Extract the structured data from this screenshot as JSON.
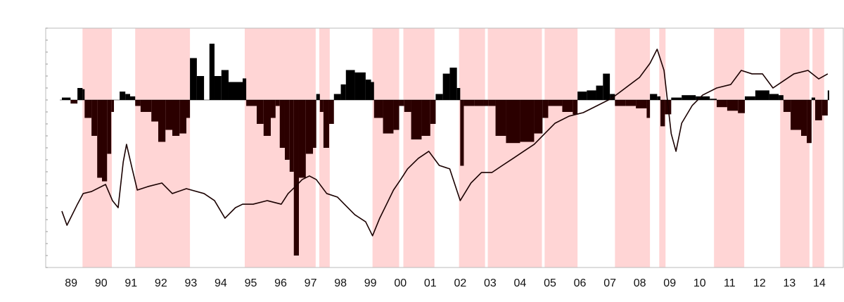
{
  "chart_data": {
    "type": "line",
    "xlim": [
      1988.15,
      2014.8
    ],
    "ylim": [
      -14,
      6
    ],
    "yticks": [
      -14,
      -13,
      -12,
      -11,
      -10,
      -9,
      -8,
      -7,
      -6,
      -5,
      -4,
      -3,
      -2,
      -1,
      0,
      1,
      2,
      3,
      4,
      5,
      6
    ],
    "xticks": [
      {
        "value": 1989,
        "label": "89"
      },
      {
        "value": 1990,
        "label": "90"
      },
      {
        "value": 1991,
        "label": "91"
      },
      {
        "value": 1992,
        "label": "92"
      },
      {
        "value": 1993,
        "label": "93"
      },
      {
        "value": 1994,
        "label": "94"
      },
      {
        "value": 1995,
        "label": "95"
      },
      {
        "value": 1996,
        "label": "96"
      },
      {
        "value": 1997,
        "label": "97"
      },
      {
        "value": 1998,
        "label": "98"
      },
      {
        "value": 1999,
        "label": "99"
      },
      {
        "value": 2000,
        "label": "00"
      },
      {
        "value": 2001,
        "label": "01"
      },
      {
        "value": 2002,
        "label": "02"
      },
      {
        "value": 2003,
        "label": "03"
      },
      {
        "value": 2004,
        "label": "04"
      },
      {
        "value": 2005,
        "label": "05"
      },
      {
        "value": 2006,
        "label": "06"
      },
      {
        "value": 2007,
        "label": "07"
      },
      {
        "value": 2008,
        "label": "08"
      },
      {
        "value": 2009,
        "label": "09"
      },
      {
        "value": 2010,
        "label": "10"
      },
      {
        "value": 2011,
        "label": "11"
      },
      {
        "value": 2012,
        "label": "12"
      },
      {
        "value": 2013,
        "label": "13"
      },
      {
        "value": 2014,
        "label": "14"
      }
    ],
    "shade_color": "#ffd5d5",
    "shaded_periods": [
      [
        1989.38,
        1990.36
      ],
      [
        1991.14,
        1992.97
      ],
      [
        1994.8,
        1997.17
      ],
      [
        1997.29,
        1997.64
      ],
      [
        1999.07,
        1999.96
      ],
      [
        2000.1,
        2001.14
      ],
      [
        2001.96,
        2002.83
      ],
      [
        2002.92,
        2004.73
      ],
      [
        2004.82,
        2005.92
      ],
      [
        2007.17,
        2008.34
      ],
      [
        2008.65,
        2008.86
      ],
      [
        2010.48,
        2011.49
      ],
      [
        2012.69,
        2013.67
      ],
      [
        2013.77,
        2014.16
      ]
    ],
    "series": [
      {
        "kind": "area",
        "color": "#000000",
        "negative_color": "#2b0000",
        "x": [
          1988.69,
          1988.98,
          1989.21,
          1989.38,
          1989.45,
          1989.68,
          1989.87,
          1990.03,
          1990.2,
          1990.34,
          1990.43,
          1990.62,
          1990.81,
          1990.97,
          1991.14,
          1991.32,
          1991.68,
          1991.91,
          1992.15,
          1992.38,
          1992.62,
          1992.85,
          1992.97,
          1993.2,
          1993.44,
          1993.62,
          1993.79,
          1994.02,
          1994.26,
          1994.73,
          1994.85,
          1995.2,
          1995.43,
          1995.67,
          1995.83,
          1995.97,
          1996.14,
          1996.3,
          1996.44,
          1996.61,
          1996.84,
          1997.08,
          1997.19,
          1997.31,
          1997.43,
          1997.62,
          1997.78,
          1998.01,
          1998.18,
          1998.48,
          1998.84,
          1999.02,
          1999.12,
          1999.42,
          1999.77,
          1999.96,
          2000.13,
          2000.36,
          2000.71,
          2001.0,
          2001.18,
          2001.42,
          2001.65,
          2001.89,
          2002.0,
          2002.12,
          2002.47,
          2002.78,
          2002.94,
          2003.18,
          2003.53,
          2004.0,
          2004.47,
          2004.75,
          2004.94,
          2005.41,
          2005.76,
          2005.92,
          2006.23,
          2006.54,
          2006.77,
          2007.0,
          2007.17,
          2007.52,
          2007.87,
          2008.23,
          2008.34,
          2008.58,
          2008.69,
          2008.84,
          2009.05,
          2009.4,
          2009.87,
          2010.34,
          2010.57,
          2010.92,
          2011.28,
          2011.51,
          2011.86,
          2012.33,
          2012.64,
          2012.8,
          2013.04,
          2013.39,
          2013.58,
          2013.74,
          2013.86,
          2014.09,
          2014.28
        ],
        "values": [
          0.2,
          -0.3,
          1.0,
          0.9,
          -1.5,
          -3,
          -6.5,
          -6.8,
          -4.5,
          -1,
          0,
          0.7,
          0.5,
          0.3,
          -0.5,
          -1,
          -1.8,
          -3.5,
          -2.5,
          -3,
          -2.8,
          -1.5,
          3.5,
          2,
          0,
          4.7,
          2,
          2.5,
          1.5,
          1.8,
          -0.5,
          -2,
          -3,
          -1.5,
          -0.5,
          -4,
          -5,
          -6,
          -13,
          -6.5,
          -4.5,
          -4,
          0.5,
          -1,
          -4,
          -2,
          0.5,
          1.3,
          2.5,
          2.3,
          1.7,
          1.5,
          -1.5,
          -2.8,
          -2.5,
          -0.5,
          -1,
          -3.3,
          -3,
          -2,
          0.5,
          2.2,
          2.7,
          1,
          -5.5,
          -0.5,
          -0.5,
          -0.5,
          -0.5,
          -3,
          -3.6,
          -3.5,
          -2.8,
          -1.5,
          -0.5,
          -1,
          -1.2,
          0.7,
          0.8,
          1.2,
          2.2,
          0.5,
          -0.5,
          -0.5,
          -0.7,
          -1.5,
          0.5,
          0.3,
          -2.2,
          -1.2,
          0.2,
          0.4,
          0.3,
          0.1,
          -0.6,
          -0.9,
          -1.1,
          0.3,
          0.8,
          0.5,
          0.4,
          -1,
          -2.5,
          -3,
          -3.6,
          0.2,
          -1.7,
          -1.3,
          0.8
        ]
      },
      {
        "kind": "line",
        "color": "#1a0000",
        "x": [
          1988.69,
          1988.86,
          1989.21,
          1989.4,
          1989.68,
          1990.15,
          1990.38,
          1990.57,
          1990.74,
          1990.85,
          1991.04,
          1991.21,
          1991.56,
          1992.03,
          1992.38,
          1992.85,
          1993.44,
          1993.79,
          1994.14,
          1994.49,
          1994.73,
          1995.08,
          1995.55,
          1996.02,
          1996.25,
          1996.49,
          1996.72,
          1996.96,
          1997.19,
          1997.54,
          1997.9,
          1998.13,
          1998.48,
          1998.84,
          1999.07,
          1999.31,
          1999.54,
          1999.77,
          2000.01,
          2000.24,
          2000.6,
          2000.95,
          2001.3,
          2001.65,
          2002.0,
          2002.36,
          2002.71,
          2003.06,
          2003.41,
          2003.77,
          2004.12,
          2004.47,
          2004.82,
          2005.17,
          2005.64,
          2006.11,
          2006.58,
          2007.05,
          2007.52,
          2007.99,
          2008.34,
          2008.58,
          2008.81,
          2009.05,
          2009.21,
          2009.4,
          2009.75,
          2010.1,
          2010.57,
          2011.04,
          2011.39,
          2011.75,
          2012.1,
          2012.45,
          2012.8,
          2013.15,
          2013.62,
          2013.98,
          2014.28
        ],
        "values": [
          -9.29,
          -10.47,
          -8.71,
          -7.82,
          -7.65,
          -7.06,
          -8.41,
          -9.0,
          -5.18,
          -3.71,
          -5.76,
          -7.53,
          -7.24,
          -6.94,
          -7.82,
          -7.41,
          -7.82,
          -8.41,
          -9.88,
          -9.0,
          -8.71,
          -8.71,
          -8.41,
          -8.71,
          -7.82,
          -7.24,
          -6.65,
          -6.35,
          -6.65,
          -7.82,
          -8.12,
          -8.71,
          -9.59,
          -10.18,
          -11.35,
          -9.88,
          -8.71,
          -7.53,
          -6.65,
          -5.76,
          -4.88,
          -4.29,
          -5.47,
          -5.76,
          -8.41,
          -6.94,
          -6.06,
          -6.06,
          -5.47,
          -4.88,
          -4.29,
          -3.71,
          -2.82,
          -1.94,
          -1.35,
          -1.06,
          -0.47,
          0.12,
          1.0,
          1.88,
          3.06,
          4.24,
          2.47,
          -2.82,
          -4.29,
          -1.94,
          -0.47,
          0.41,
          1.0,
          1.29,
          2.47,
          2.18,
          2.18,
          1.0,
          1.59,
          2.18,
          2.47,
          1.76,
          2.18
        ]
      }
    ]
  }
}
